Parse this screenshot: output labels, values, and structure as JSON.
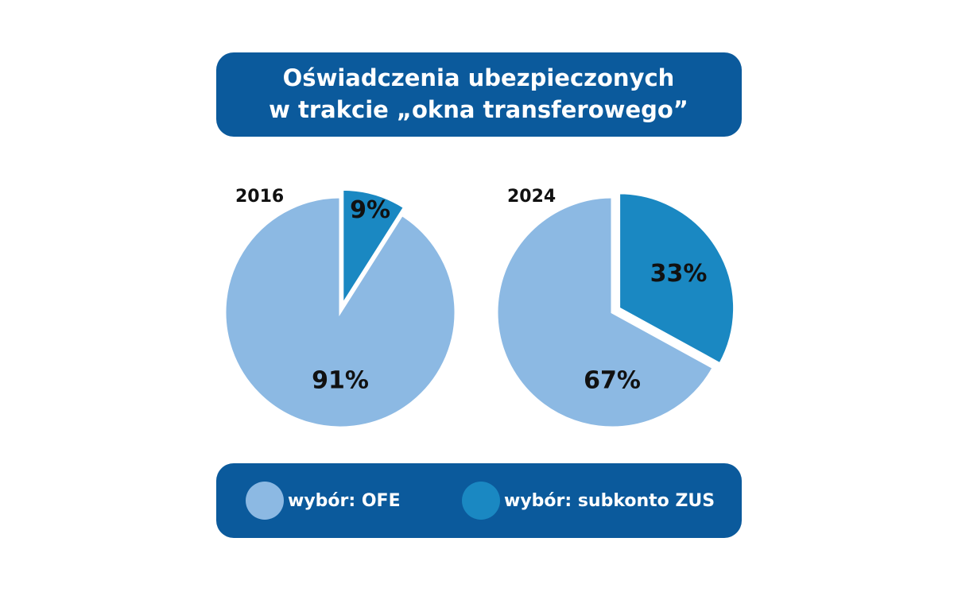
{
  "title": [
    "Oświadczenia ubezpieczonych",
    "w trakcie „okna transferowego”"
  ],
  "legend": [
    {
      "name": "wybór: OFE",
      "color": "#8cb9e3"
    },
    {
      "name": "wybór: subkonto ZUS",
      "color": "#1a88c2"
    }
  ],
  "chart_data": [
    {
      "type": "pie",
      "title": "2016",
      "values": [
        91,
        9
      ],
      "value_labels": [
        "91%",
        "9%"
      ]
    },
    {
      "type": "pie",
      "title": "2024",
      "values": [
        67,
        33
      ],
      "value_labels": [
        "67%",
        "33%"
      ]
    }
  ]
}
